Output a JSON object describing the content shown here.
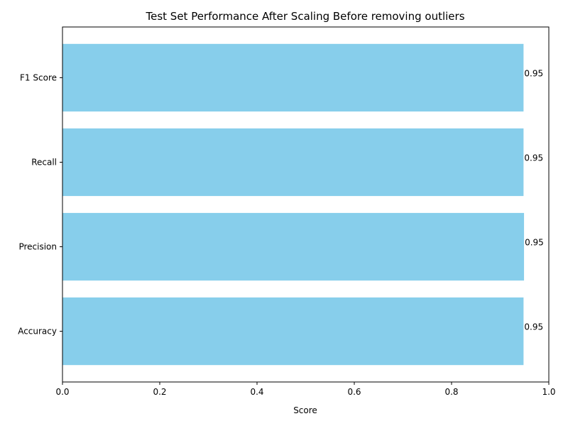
{
  "chart_data": {
    "type": "bar",
    "orientation": "horizontal",
    "title": "Test Set Performance After Scaling Before removing outliers",
    "xlabel": "Score",
    "ylabel": "",
    "categories": [
      "Accuracy",
      "Precision",
      "Recall",
      "F1 Score"
    ],
    "values": [
      0.948,
      0.949,
      0.948,
      0.948
    ],
    "value_labels": [
      "0.95",
      "0.95",
      "0.95",
      "0.95"
    ],
    "xlim": [
      0,
      1
    ],
    "xticks": [
      0,
      0.2,
      0.4,
      0.6,
      0.8,
      1
    ],
    "xtick_labels": [
      "0.0",
      "0.2",
      "0.4",
      "0.6",
      "0.8",
      "1.0"
    ],
    "bar_color": "#87ceeb",
    "grid": false
  }
}
